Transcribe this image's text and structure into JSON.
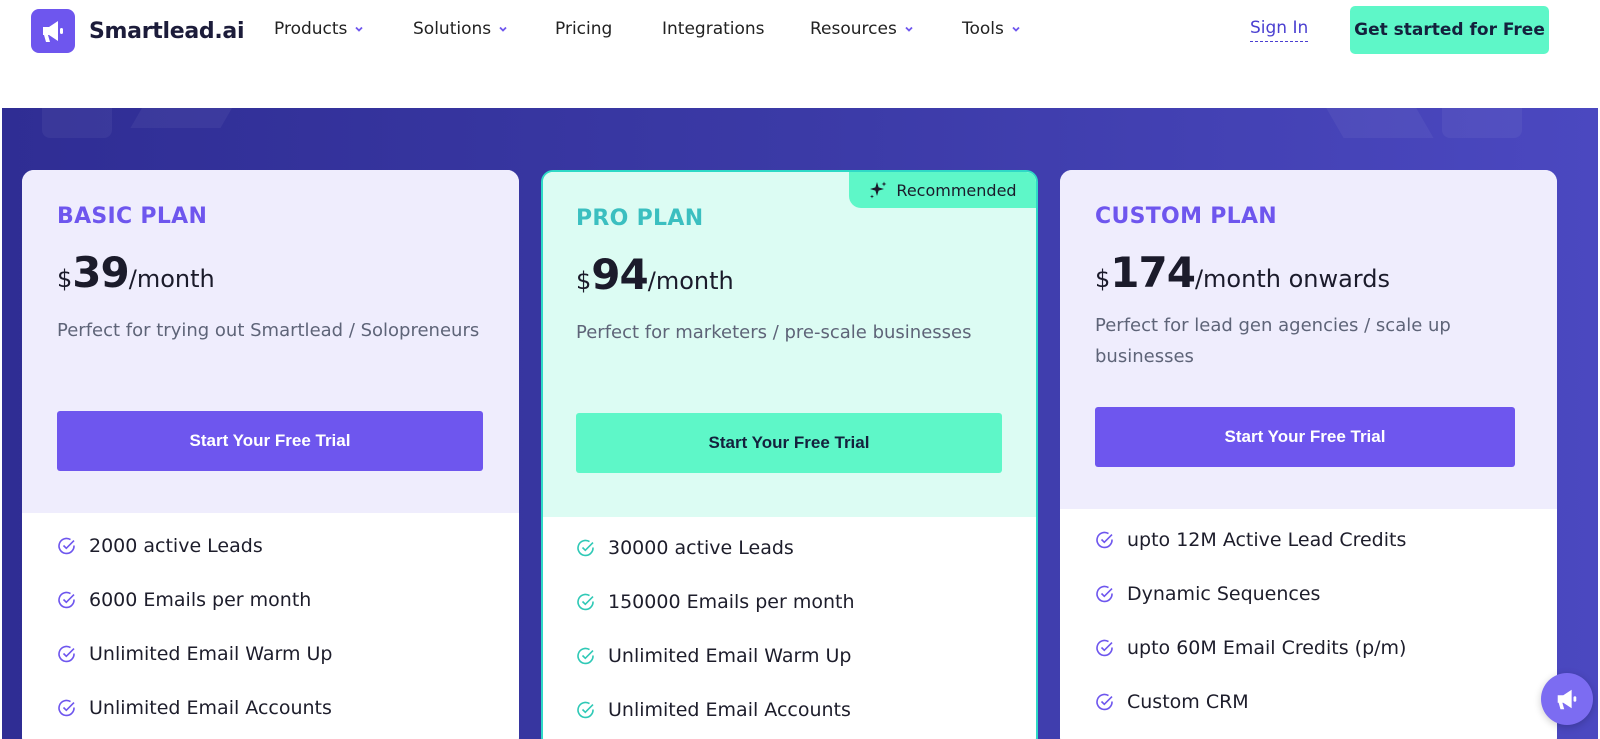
{
  "brand": {
    "name": "Smartlead.ai",
    "accent": "#6e56ee",
    "mint": "#5ef7c8"
  },
  "nav": {
    "items": [
      {
        "label": "Products",
        "dropdown": true
      },
      {
        "label": "Solutions",
        "dropdown": true
      },
      {
        "label": "Pricing",
        "dropdown": false
      },
      {
        "label": "Integrations",
        "dropdown": false
      },
      {
        "label": "Resources",
        "dropdown": true
      },
      {
        "label": "Tools",
        "dropdown": true
      }
    ],
    "sign_in": "Sign In",
    "cta": "Get started for Free"
  },
  "plans": [
    {
      "name": "BASIC PLAN",
      "currency": "$",
      "amount": "39",
      "period": "/month",
      "description": "Perfect for trying out Smartlead / Solopreneurs",
      "button": "Start Your Free Trial",
      "features": [
        "2000 active Leads",
        "6000 Emails per month",
        "Unlimited Email Warm Up",
        "Unlimited Email Accounts"
      ]
    },
    {
      "name": "PRO PLAN",
      "badge": "Recommended",
      "currency": "$",
      "amount": "94",
      "period": "/month",
      "description": "Perfect for marketers / pre-scale businesses",
      "button": "Start Your Free Trial",
      "features": [
        "30000 active Leads",
        "150000 Emails per month",
        "Unlimited Email Warm Up",
        "Unlimited Email Accounts"
      ]
    },
    {
      "name": "CUSTOM PLAN",
      "currency": "$",
      "amount": "174",
      "period": "/month onwards",
      "description": "Perfect for lead gen agencies / scale up businesses",
      "button": "Start Your Free Trial",
      "features": [
        "upto 12M Active Lead Credits",
        "Dynamic Sequences",
        "upto 60M Email Credits (p/m)",
        "Custom CRM"
      ]
    }
  ],
  "icons": {
    "feature": "check-circle-icon",
    "badge": "sparkle-icon",
    "chat": "megaphone-icon"
  }
}
